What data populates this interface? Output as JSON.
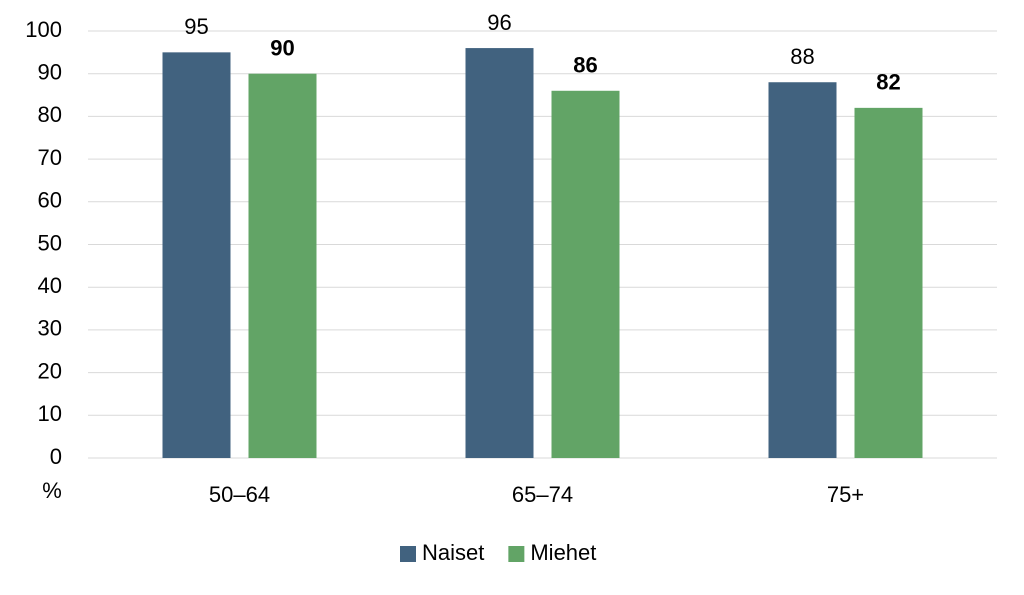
{
  "chart_data": {
    "type": "bar",
    "ylabel": "%",
    "categories": [
      "50–64",
      "65–74",
      "75+"
    ],
    "series": [
      {
        "name": "Naiset",
        "color": "#41627f",
        "values": [
          95,
          96,
          88
        ]
      },
      {
        "name": "Miehet",
        "color": "#62a466",
        "values": [
          90,
          86,
          82
        ]
      }
    ],
    "ylim": [
      0,
      100
    ],
    "yticks": [
      0,
      10,
      20,
      30,
      40,
      50,
      60,
      70,
      80,
      90,
      100
    ],
    "grid": true,
    "legend": "bottom"
  }
}
